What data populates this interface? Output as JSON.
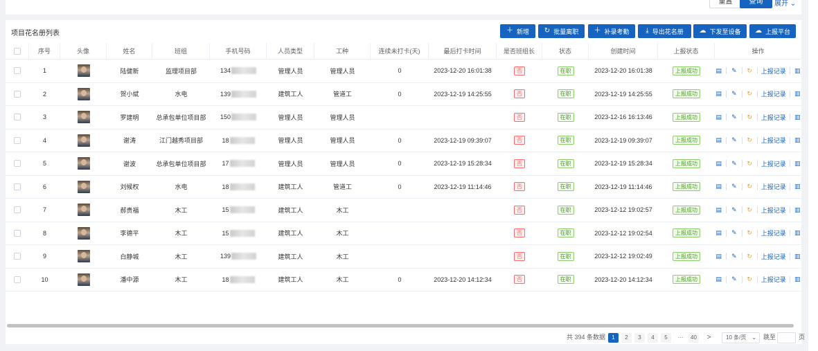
{
  "top": {
    "reset_label": "重置",
    "query_label": "查询",
    "expand_label": "展开"
  },
  "list_title": "项目花名册列表",
  "toolbar": {
    "add": "新增",
    "batch_leave": "批量离职",
    "supplement": "补录考勤",
    "export": "导出花名册",
    "issue_device": "下发至设备",
    "report_platform": "上报平台"
  },
  "columns": [
    "序号",
    "头像",
    "姓名",
    "班组",
    "手机号码",
    "人员类型",
    "工种",
    "连续未打卡(天)",
    "最后打卡时间",
    "是否班组长",
    "状态",
    "创建时间",
    "上报状态",
    "操作"
  ],
  "rows": [
    {
      "no": "1",
      "name": "陆健新",
      "team": "监理项目部",
      "phone": "134",
      "type": "管理人员",
      "trade": "管理人员",
      "days": "0",
      "last": "2023-12-20 16:01:38",
      "leader": "否",
      "status": "在职",
      "created": "2023-12-20 16:01:38",
      "report": "上报成功"
    },
    {
      "no": "2",
      "name": "贺小斌",
      "team": "水电",
      "phone": "139",
      "type": "建筑工人",
      "trade": "管道工",
      "days": "0",
      "last": "2023-12-19 14:25:55",
      "leader": "否",
      "status": "在职",
      "created": "2023-12-19 14:25:55",
      "report": "上报成功"
    },
    {
      "no": "3",
      "name": "罗建明",
      "team": "总承包单位项目部",
      "phone": "150",
      "type": "管理人员",
      "trade": "管理人员",
      "days": "",
      "last": "",
      "leader": "否",
      "status": "在职",
      "created": "2023-12-16 16:13:46",
      "report": "上报成功"
    },
    {
      "no": "4",
      "name": "谢涛",
      "team": "江门越秀项目部",
      "phone": "18",
      "type": "管理人员",
      "trade": "管理人员",
      "days": "0",
      "last": "2023-12-19 09:39:07",
      "leader": "否",
      "status": "在职",
      "created": "2023-12-19 09:39:07",
      "report": "上报成功"
    },
    {
      "no": "5",
      "name": "谢波",
      "team": "总承包单位项目部",
      "phone": "17",
      "type": "管理人员",
      "trade": "管理人员",
      "days": "0",
      "last": "2023-12-19 15:28:34",
      "leader": "否",
      "status": "在职",
      "created": "2023-12-19 15:28:34",
      "report": "上报成功"
    },
    {
      "no": "6",
      "name": "刘候权",
      "team": "水电",
      "phone": "18",
      "type": "建筑工人",
      "trade": "管道工",
      "days": "0",
      "last": "2023-12-19 11:14:46",
      "leader": "否",
      "status": "在职",
      "created": "2023-12-19 11:14:46",
      "report": "上报成功"
    },
    {
      "no": "7",
      "name": "郝贵福",
      "team": "木工",
      "phone": "15",
      "type": "建筑工人",
      "trade": "木工",
      "days": "",
      "last": "",
      "leader": "否",
      "status": "在职",
      "created": "2023-12-12 19:02:57",
      "report": "上报成功"
    },
    {
      "no": "8",
      "name": "李德平",
      "team": "木工",
      "phone": "15",
      "type": "建筑工人",
      "trade": "木工",
      "days": "",
      "last": "",
      "leader": "否",
      "status": "在职",
      "created": "2023-12-12 19:02:54",
      "report": "上报成功"
    },
    {
      "no": "9",
      "name": "白静城",
      "team": "木工",
      "phone": "139",
      "type": "建筑工人",
      "trade": "木工",
      "days": "",
      "last": "",
      "leader": "否",
      "status": "在职",
      "created": "2023-12-12 19:02:49",
      "report": "上报成功"
    },
    {
      "no": "10",
      "name": "潘中源",
      "team": "木工",
      "phone": "18",
      "type": "建筑工人",
      "trade": "木工",
      "days": "0",
      "last": "2023-12-20 14:12:34",
      "leader": "否",
      "status": "在职",
      "created": "2023-12-20 14:12:34",
      "report": "上报成功"
    }
  ],
  "ops": {
    "report_record": "上报记录"
  },
  "pagination": {
    "total": "共 394 条数据",
    "pages": [
      "1",
      "2",
      "3",
      "4",
      "5"
    ],
    "ellipsis": "···",
    "last": "40",
    "next": ">",
    "size": "10 条/页",
    "goto": "跳至",
    "page_unit": "页"
  },
  "colors": {
    "primary": "#1664c0",
    "danger": "#f56c6c",
    "success": "#52a02a"
  }
}
